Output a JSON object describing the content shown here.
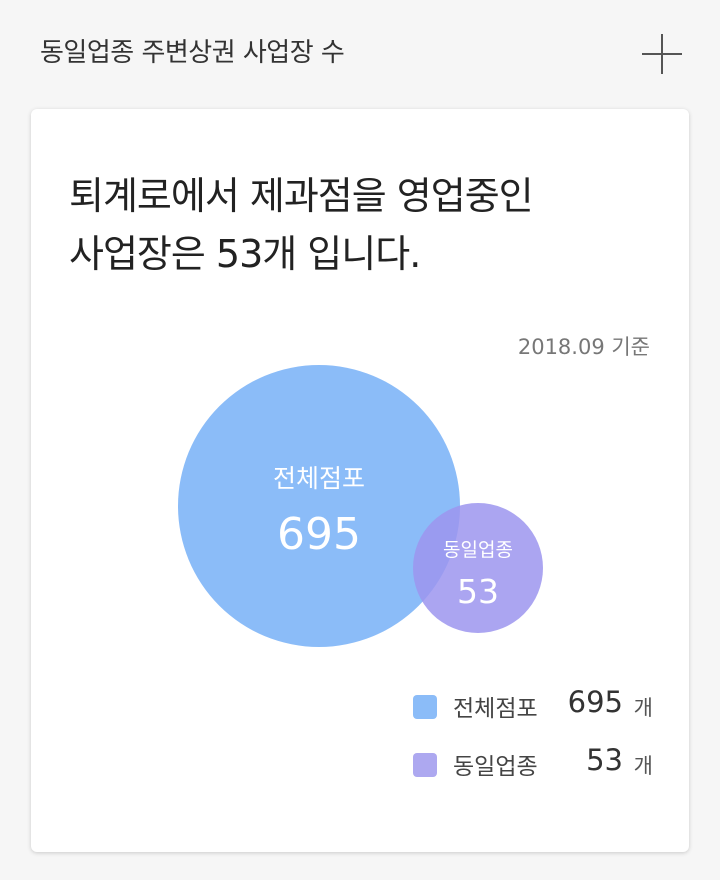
{
  "header": {
    "title": "동일업종 주변상권 사업장 수"
  },
  "card": {
    "headline_line1": "퇴계로에서 제과점을 영업중인",
    "headline_line2": "사업장은 53개 입니다.",
    "basis": "2018.09 기준"
  },
  "colors": {
    "total": "#8bbcf8",
    "same": "#9c95ef",
    "same_legend": "#ada8f0"
  },
  "chart_data": {
    "type": "bubble",
    "series": [
      {
        "name": "전체점포",
        "value": 695
      },
      {
        "name": "동일업종",
        "value": 53
      }
    ]
  },
  "legend": {
    "unit": "개",
    "items": [
      {
        "label": "전체점포",
        "value": "695"
      },
      {
        "label": "동일업종",
        "value": "53"
      }
    ]
  }
}
